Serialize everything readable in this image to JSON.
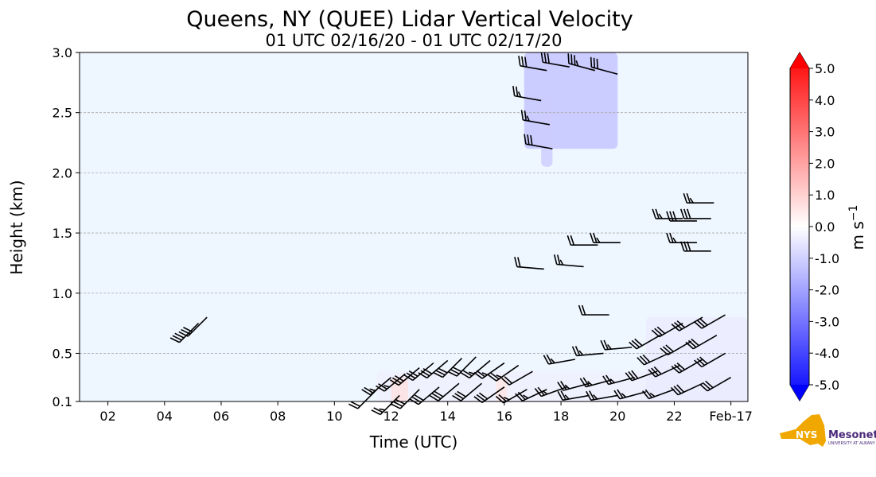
{
  "chart_data": {
    "type": "heatmap",
    "title": "Queens, NY (QUEE) Lidar Vertical Velocity",
    "subtitle": "01 UTC 02/16/20 - 01 UTC 02/17/20",
    "xlabel": "Time (UTC)",
    "ylabel": "Height (km)",
    "xlim": [
      1,
      24.6
    ],
    "ylim": [
      0.1,
      3.0
    ],
    "xticks": [
      {
        "v": 2,
        "l": "02"
      },
      {
        "v": 4,
        "l": "04"
      },
      {
        "v": 6,
        "l": "06"
      },
      {
        "v": 8,
        "l": "08"
      },
      {
        "v": 10,
        "l": "10"
      },
      {
        "v": 12,
        "l": "12"
      },
      {
        "v": 14,
        "l": "14"
      },
      {
        "v": 16,
        "l": "16"
      },
      {
        "v": 18,
        "l": "18"
      },
      {
        "v": 20,
        "l": "20"
      },
      {
        "v": 22,
        "l": "22"
      },
      {
        "v": 24,
        "l": "Feb-17"
      }
    ],
    "yticks": [
      {
        "v": 0.1,
        "l": "0.1"
      },
      {
        "v": 0.5,
        "l": "0.5"
      },
      {
        "v": 1.0,
        "l": "1.0"
      },
      {
        "v": 1.5,
        "l": "1.5"
      },
      {
        "v": 2.0,
        "l": "2.0"
      },
      {
        "v": 2.5,
        "l": "2.5"
      },
      {
        "v": 3.0,
        "l": "3.0"
      }
    ],
    "grid": "horizontal dashed",
    "background_value_color": "#eef6ff",
    "colorbar": {
      "label": "m s",
      "label_exp": "−1",
      "min": -5,
      "max": 5,
      "ticks": [
        "5.0",
        "4.0",
        "3.0",
        "2.0",
        "1.0",
        "0.0",
        "-1.0",
        "-2.0",
        "-3.0",
        "-4.0",
        "-5.0"
      ],
      "colors": [
        "#0000ff",
        "#ffffff",
        "#ff0000"
      ]
    },
    "velocity_patches": [
      {
        "t0": 16.7,
        "t1": 20.0,
        "h0": 2.2,
        "h1": 3.0,
        "value": -1.2
      },
      {
        "t0": 17.3,
        "t1": 17.7,
        "h0": 2.05,
        "h1": 2.6,
        "value": -1.0
      },
      {
        "t0": 11.5,
        "t1": 24.6,
        "h0": 0.1,
        "h1": 0.35,
        "value": -0.3
      },
      {
        "t0": 12.0,
        "t1": 12.6,
        "h0": 0.1,
        "h1": 0.3,
        "value": 0.6
      },
      {
        "t0": 15.7,
        "t1": 16.1,
        "h0": 0.1,
        "h1": 0.3,
        "value": 0.5
      },
      {
        "t0": 21.0,
        "t1": 24.6,
        "h0": 0.1,
        "h1": 0.8,
        "value": -0.4
      }
    ],
    "wind_barbs": [
      [
        5.2,
        0.75,
        225,
        30
      ],
      [
        5.5,
        0.8,
        225,
        30
      ],
      [
        17.5,
        2.85,
        280,
        30
      ],
      [
        18.3,
        2.88,
        280,
        30
      ],
      [
        19.2,
        2.85,
        285,
        35
      ],
      [
        20.0,
        2.82,
        285,
        30
      ],
      [
        17.3,
        2.6,
        280,
        25
      ],
      [
        17.6,
        2.4,
        280,
        25
      ],
      [
        17.7,
        2.2,
        280,
        30
      ],
      [
        17.4,
        1.2,
        275,
        20
      ],
      [
        18.8,
        1.22,
        275,
        25
      ],
      [
        19.3,
        1.4,
        270,
        20
      ],
      [
        20.1,
        1.42,
        270,
        25
      ],
      [
        19.7,
        0.82,
        270,
        20
      ],
      [
        22.3,
        1.62,
        270,
        25
      ],
      [
        22.8,
        1.6,
        270,
        30
      ],
      [
        23.3,
        1.62,
        270,
        30
      ],
      [
        23.4,
        1.75,
        270,
        25
      ],
      [
        22.8,
        1.42,
        270,
        25
      ],
      [
        23.3,
        1.35,
        270,
        30
      ],
      [
        11.5,
        0.2,
        225,
        20
      ],
      [
        12.0,
        0.3,
        230,
        25
      ],
      [
        12.5,
        0.33,
        230,
        25
      ],
      [
        13.0,
        0.38,
        230,
        30
      ],
      [
        13.5,
        0.42,
        230,
        30
      ],
      [
        14.0,
        0.44,
        230,
        30
      ],
      [
        14.5,
        0.46,
        225,
        30
      ],
      [
        15.0,
        0.47,
        225,
        30
      ],
      [
        15.5,
        0.44,
        230,
        25
      ],
      [
        16.0,
        0.42,
        235,
        25
      ],
      [
        16.5,
        0.4,
        235,
        25
      ],
      [
        17.0,
        0.35,
        240,
        20
      ],
      [
        12.3,
        0.15,
        225,
        25
      ],
      [
        13.0,
        0.2,
        225,
        30
      ],
      [
        13.7,
        0.22,
        230,
        30
      ],
      [
        14.4,
        0.25,
        230,
        30
      ],
      [
        15.2,
        0.25,
        230,
        30
      ],
      [
        16.0,
        0.22,
        235,
        30
      ],
      [
        16.8,
        0.2,
        240,
        25
      ],
      [
        17.5,
        0.2,
        245,
        25
      ],
      [
        18.2,
        0.22,
        250,
        25
      ],
      [
        19.0,
        0.25,
        255,
        25
      ],
      [
        19.8,
        0.28,
        255,
        25
      ],
      [
        20.6,
        0.3,
        255,
        25
      ],
      [
        21.4,
        0.35,
        250,
        30
      ],
      [
        22.2,
        0.4,
        245,
        30
      ],
      [
        23.0,
        0.45,
        240,
        30
      ],
      [
        23.8,
        0.5,
        240,
        30
      ],
      [
        18.5,
        0.45,
        260,
        25
      ],
      [
        19.5,
        0.5,
        265,
        25
      ],
      [
        20.5,
        0.55,
        265,
        25
      ],
      [
        21.5,
        0.65,
        240,
        30
      ],
      [
        22.3,
        0.75,
        240,
        30
      ],
      [
        23.0,
        0.8,
        240,
        30
      ],
      [
        23.8,
        0.82,
        240,
        30
      ],
      [
        21.8,
        0.5,
        245,
        30
      ],
      [
        22.6,
        0.6,
        240,
        30
      ],
      [
        23.5,
        0.65,
        240,
        30
      ],
      [
        19.0,
        0.15,
        260,
        25
      ],
      [
        20.0,
        0.15,
        260,
        25
      ],
      [
        21.0,
        0.18,
        255,
        25
      ],
      [
        22.0,
        0.2,
        250,
        25
      ],
      [
        23.0,
        0.25,
        245,
        30
      ],
      [
        24.0,
        0.3,
        240,
        30
      ]
    ]
  },
  "logo": {
    "text1": "NYS",
    "text2": "Mesonet",
    "text3": "UNIVERSITY AT ALBANY"
  }
}
